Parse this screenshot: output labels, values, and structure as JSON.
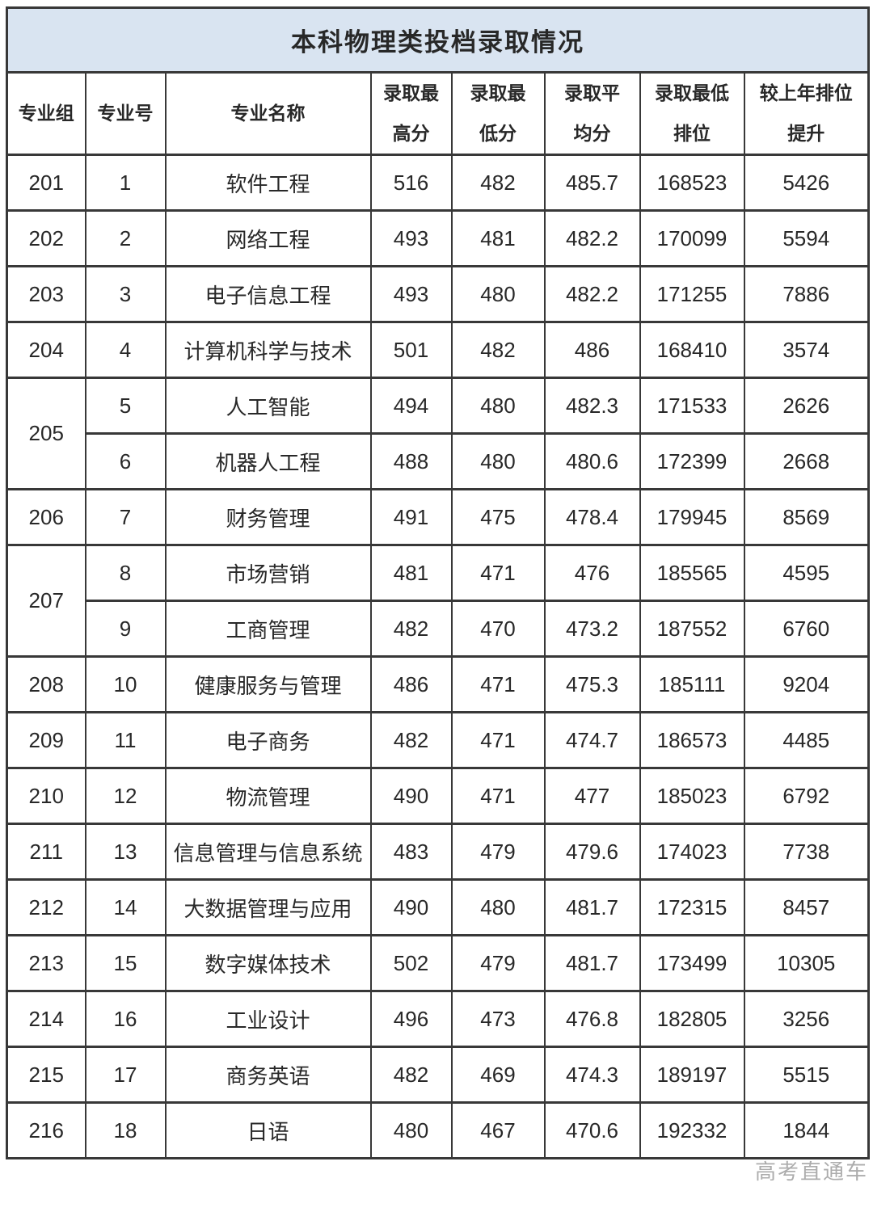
{
  "page": {
    "title_label": "本科物理类投档录取情况",
    "watermark_label": "高考直通车"
  },
  "colors": {
    "title_bg": "#d9e4f1",
    "border": "#383838",
    "text": "#282828",
    "watermark": "#9e9e9e"
  },
  "table": {
    "column_ids": [
      "group",
      "major-no",
      "major-name",
      "max-score",
      "min-score",
      "avg-score",
      "min-rank",
      "rank-gain"
    ],
    "header_lines": [
      [
        "专业组"
      ],
      [
        "专业号"
      ],
      [
        "专业名称"
      ],
      [
        "录取最",
        "高分"
      ],
      [
        "录取最",
        "低分"
      ],
      [
        "录取平",
        "均分"
      ],
      [
        "录取最低",
        "排位"
      ],
      [
        "较上年排位",
        "提升"
      ]
    ]
  },
  "chart_data": {
    "type": "table",
    "title": "本科物理类投档录取情况",
    "columns": [
      "专业组",
      "专业号",
      "专业名称",
      "录取最高分",
      "录取最低分",
      "录取平均分",
      "录取最低排位",
      "较上年排位提升"
    ],
    "rows": [
      [
        "201",
        "1",
        "软件工程",
        516,
        482,
        485.7,
        168523,
        5426
      ],
      [
        "202",
        "2",
        "网络工程",
        493,
        481,
        482.2,
        170099,
        5594
      ],
      [
        "203",
        "3",
        "电子信息工程",
        493,
        480,
        482.2,
        171255,
        7886
      ],
      [
        "204",
        "4",
        "计算机科学与技术",
        501,
        482,
        486,
        168410,
        3574
      ],
      [
        "205",
        "5",
        "人工智能",
        494,
        480,
        482.3,
        171533,
        2626
      ],
      [
        "",
        "6",
        "机器人工程",
        488,
        480,
        480.6,
        172399,
        2668
      ],
      [
        "206",
        "7",
        "财务管理",
        491,
        475,
        478.4,
        179945,
        8569
      ],
      [
        "207",
        "8",
        "市场营销",
        481,
        471,
        476,
        185565,
        4595
      ],
      [
        "",
        "9",
        "工商管理",
        482,
        470,
        473.2,
        187552,
        6760
      ],
      [
        "208",
        "10",
        "健康服务与管理",
        486,
        471,
        475.3,
        185111,
        9204
      ],
      [
        "209",
        "11",
        "电子商务",
        482,
        471,
        474.7,
        186573,
        4485
      ],
      [
        "210",
        "12",
        "物流管理",
        490,
        471,
        477,
        185023,
        6792
      ],
      [
        "211",
        "13",
        "信息管理与信息系统",
        483,
        479,
        479.6,
        174023,
        7738
      ],
      [
        "212",
        "14",
        "大数据管理与应用",
        490,
        480,
        481.7,
        172315,
        8457
      ],
      [
        "213",
        "15",
        "数字媒体技术",
        502,
        479,
        481.7,
        173499,
        10305
      ],
      [
        "214",
        "16",
        "工业设计",
        496,
        473,
        476.8,
        182805,
        3256
      ],
      [
        "215",
        "17",
        "商务英语",
        482,
        469,
        474.3,
        189197,
        5515
      ],
      [
        "216",
        "18",
        "日语",
        480,
        467,
        470.6,
        192332,
        1844
      ]
    ]
  }
}
